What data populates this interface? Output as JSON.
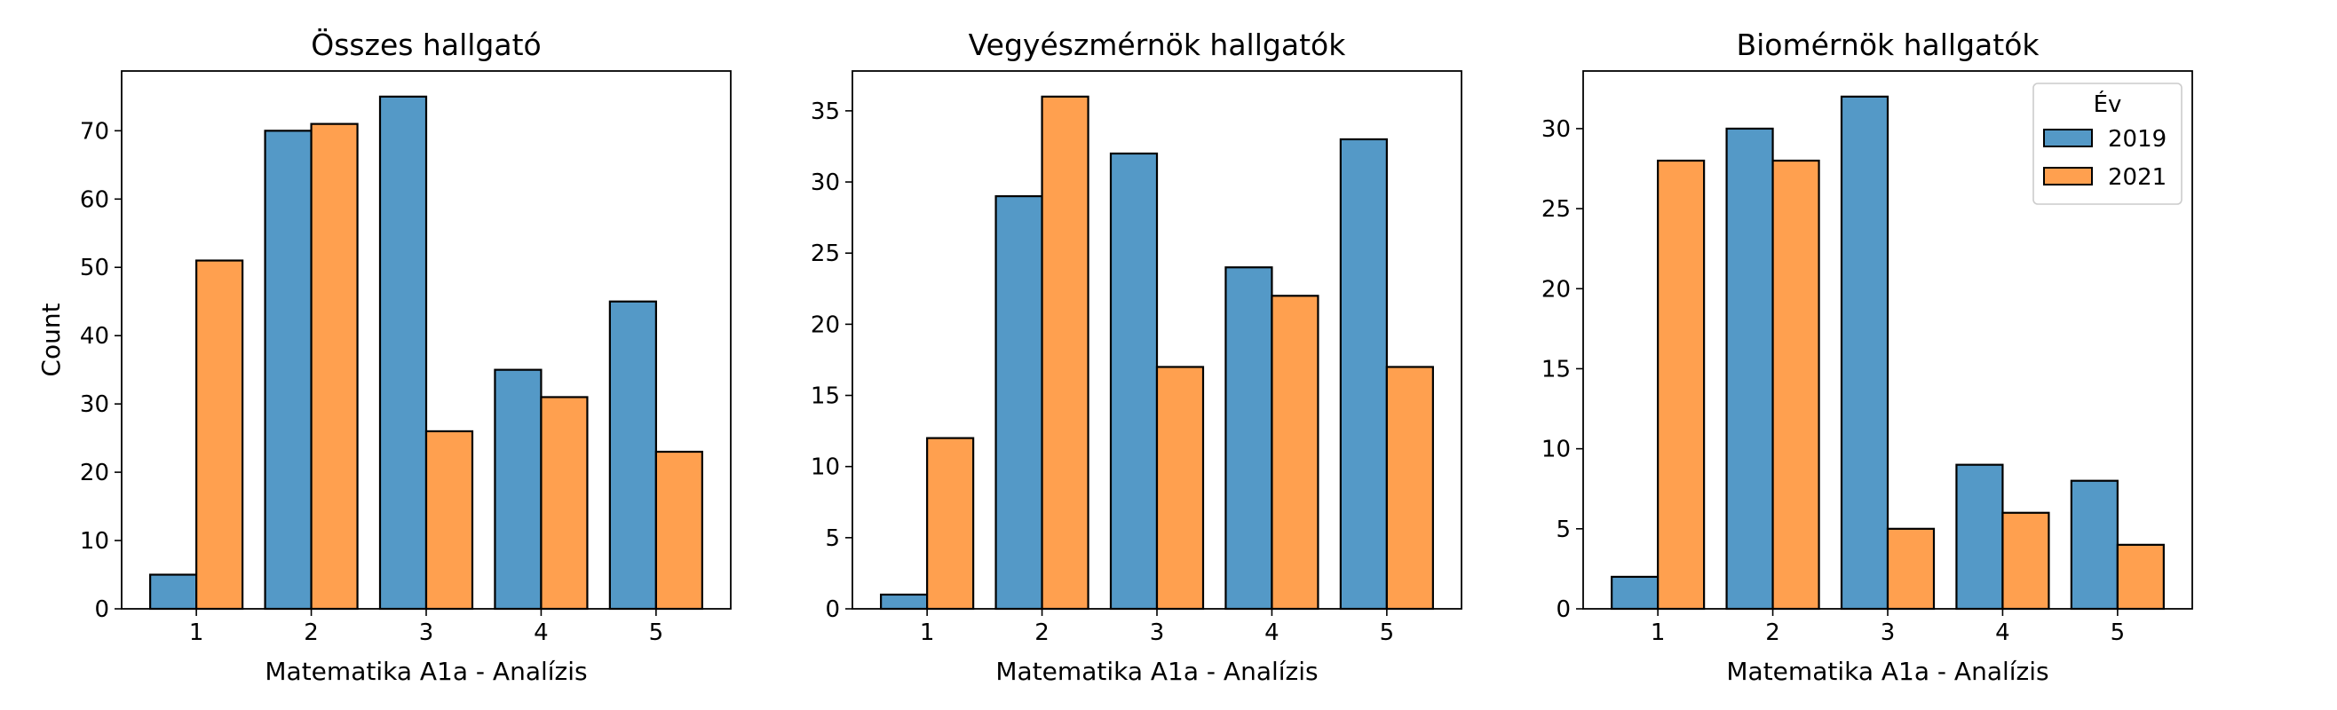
{
  "chart_data": [
    {
      "type": "bar",
      "title": "Összes hallgató",
      "xlabel": "Matematika A1a - Analízis",
      "ylabel": "Count",
      "categories": [
        "1",
        "2",
        "3",
        "4",
        "5"
      ],
      "ylim": [
        0,
        78.75
      ],
      "yticks": [
        0,
        10,
        20,
        30,
        40,
        50,
        60,
        70
      ],
      "series": [
        {
          "name": "2019",
          "values": [
            5,
            70,
            75,
            35,
            45
          ]
        },
        {
          "name": "2021",
          "values": [
            51,
            71,
            26,
            31,
            23
          ]
        }
      ],
      "grid": false
    },
    {
      "type": "bar",
      "title": "Vegyészmérnök hallgatók",
      "xlabel": "Matematika A1a - Analízis",
      "ylabel": "",
      "categories": [
        "1",
        "2",
        "3",
        "4",
        "5"
      ],
      "ylim": [
        0,
        37.8
      ],
      "yticks": [
        0,
        5,
        10,
        15,
        20,
        25,
        30,
        35
      ],
      "series": [
        {
          "name": "2019",
          "values": [
            1,
            29,
            32,
            24,
            33
          ]
        },
        {
          "name": "2021",
          "values": [
            12,
            36,
            17,
            22,
            17
          ]
        }
      ],
      "grid": false
    },
    {
      "type": "bar",
      "title": "Biomérnök hallgatók",
      "xlabel": "Matematika A1a - Analízis",
      "ylabel": "",
      "categories": [
        "1",
        "2",
        "3",
        "4",
        "5"
      ],
      "ylim": [
        0,
        33.6
      ],
      "yticks": [
        0,
        5,
        10,
        15,
        20,
        25,
        30
      ],
      "series": [
        {
          "name": "2019",
          "values": [
            2,
            30,
            32,
            9,
            8
          ]
        },
        {
          "name": "2021",
          "values": [
            28,
            28,
            5,
            6,
            4
          ]
        }
      ],
      "grid": false,
      "legend": {
        "title": "Év",
        "placement": "top-right"
      }
    }
  ],
  "colors": {
    "2019": "#5499c7",
    "2021": "#ffa04f",
    "edge": "#000000"
  }
}
